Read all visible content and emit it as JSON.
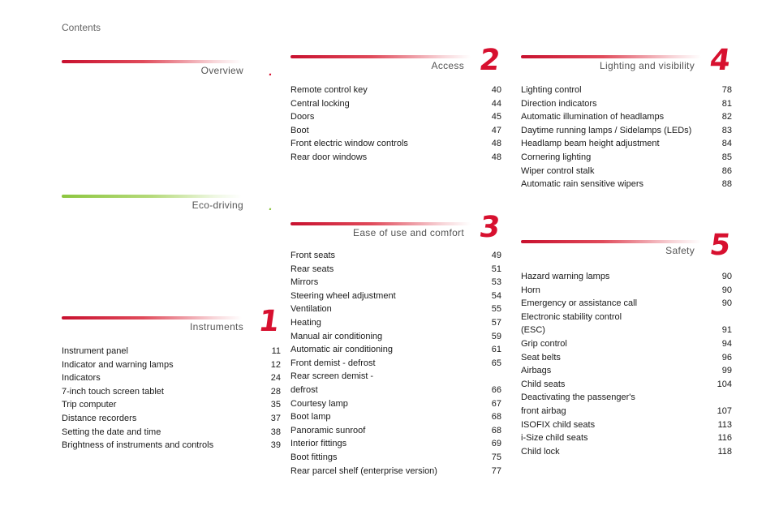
{
  "page_title": "Contents",
  "sections": {
    "overview": {
      "title": "Overview",
      "number": ".",
      "items": []
    },
    "eco": {
      "title": "Eco-driving",
      "number": ".",
      "items": []
    },
    "instruments": {
      "title": "Instruments",
      "number": "1",
      "items": [
        {
          "label": "Instrument panel",
          "page": "11"
        },
        {
          "label": "Indicator and warning lamps",
          "page": "12"
        },
        {
          "label": "Indicators",
          "page": "24"
        },
        {
          "label": "7-inch touch screen tablet",
          "page": "28"
        },
        {
          "label": "Trip computer",
          "page": "35"
        },
        {
          "label": "Distance recorders",
          "page": "37"
        },
        {
          "label": "Setting the date and time",
          "page": "38"
        },
        {
          "label": "Brightness of instruments and controls",
          "page": "39"
        }
      ]
    },
    "access": {
      "title": "Access",
      "number": "2",
      "items": [
        {
          "label": "Remote control key",
          "page": "40"
        },
        {
          "label": "Central locking",
          "page": "44"
        },
        {
          "label": "Doors",
          "page": "45"
        },
        {
          "label": "Boot",
          "page": "47"
        },
        {
          "label": "Front electric window controls",
          "page": "48"
        },
        {
          "label": "Rear door windows",
          "page": "48"
        }
      ]
    },
    "ease": {
      "title": "Ease of use and comfort",
      "number": "3",
      "items": [
        {
          "label": "Front seats",
          "page": "49"
        },
        {
          "label": "Rear seats",
          "page": "51"
        },
        {
          "label": "Mirrors",
          "page": "53"
        },
        {
          "label": "Steering wheel adjustment",
          "page": "54"
        },
        {
          "label": "Ventilation",
          "page": "55"
        },
        {
          "label": "Heating",
          "page": "57"
        },
        {
          "label": "Manual air conditioning",
          "page": "59"
        },
        {
          "label": "Automatic air conditioning",
          "page": "61"
        },
        {
          "label": "Front demist - defrost",
          "page": "65"
        },
        {
          "label": "Rear screen demist -\n   defrost",
          "page": "66"
        },
        {
          "label": "Courtesy lamp",
          "page": "67"
        },
        {
          "label": "Boot lamp",
          "page": "68"
        },
        {
          "label": "Panoramic sunroof",
          "page": "68"
        },
        {
          "label": "Interior fittings",
          "page": "69"
        },
        {
          "label": "Boot fittings",
          "page": "75"
        },
        {
          "label": "Rear parcel shelf (enterprise version)",
          "page": "77"
        }
      ]
    },
    "lighting": {
      "title": "Lighting and visibility",
      "number": "4",
      "items": [
        {
          "label": "Lighting control",
          "page": "78"
        },
        {
          "label": "Direction indicators",
          "page": "81"
        },
        {
          "label": "Automatic illumination of headlamps",
          "page": "82"
        },
        {
          "label": "Daytime running lamps / Sidelamps (LEDs)",
          "page": "83"
        },
        {
          "label": "Headlamp beam height adjustment",
          "page": "84"
        },
        {
          "label": "Cornering lighting",
          "page": "85"
        },
        {
          "label": "Wiper control stalk",
          "page": "86"
        },
        {
          "label": "Automatic rain sensitive wipers",
          "page": "88"
        }
      ]
    },
    "safety": {
      "title": "Safety",
      "number": "5",
      "items": [
        {
          "label": "Hazard warning lamps",
          "page": "90"
        },
        {
          "label": "Horn",
          "page": "90"
        },
        {
          "label": "Emergency or assistance call",
          "page": "90"
        },
        {
          "label": "Electronic stability control\n   (ESC)",
          "page": "91"
        },
        {
          "label": "Grip control",
          "page": "94"
        },
        {
          "label": "Seat belts",
          "page": "96"
        },
        {
          "label": "Airbags",
          "page": "99"
        },
        {
          "label": "Child seats",
          "page": "104"
        },
        {
          "label": "Deactivating the passenger's\n   front airbag",
          "page": "107"
        },
        {
          "label": "ISOFIX child seats",
          "page": "113"
        },
        {
          "label": "i-Size child seats",
          "page": "116"
        },
        {
          "label": "Child lock",
          "page": "118"
        }
      ]
    }
  }
}
